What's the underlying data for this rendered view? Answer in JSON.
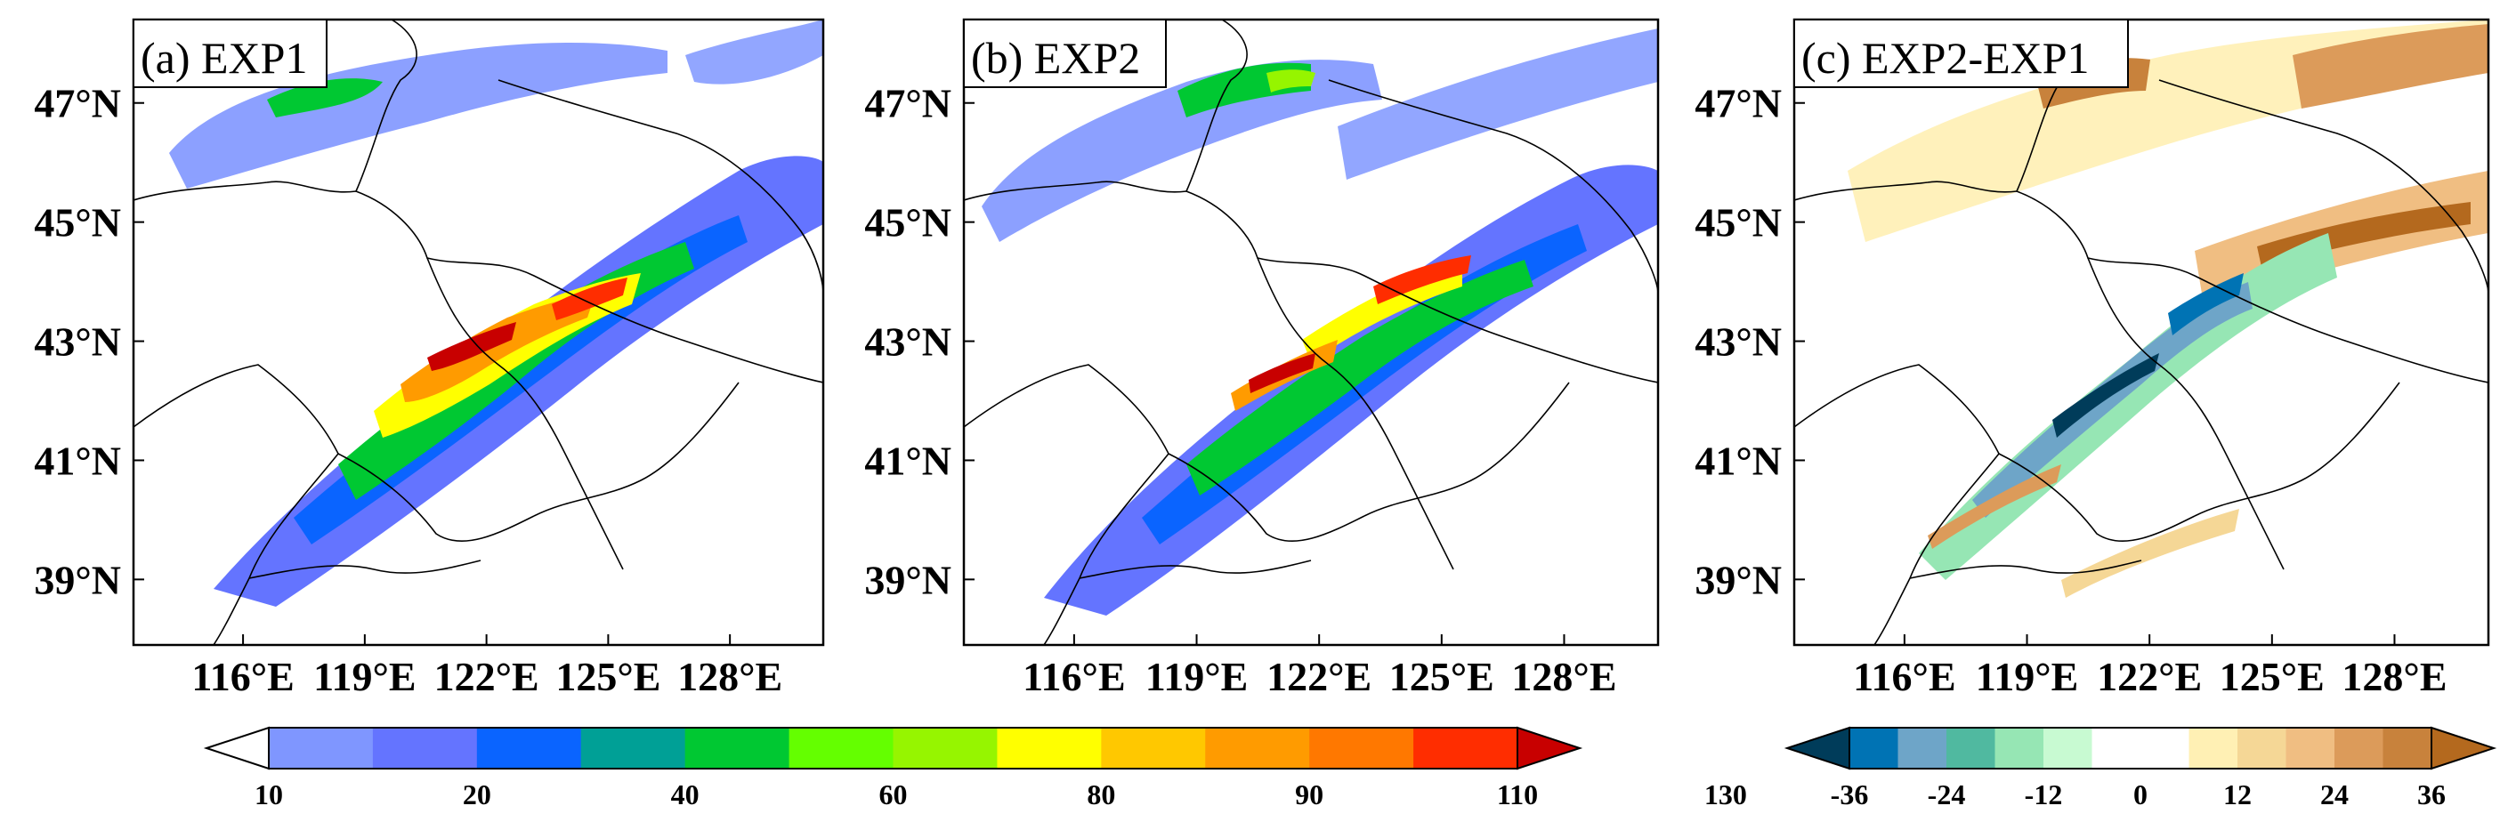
{
  "figure": {
    "panels": [
      {
        "id": "a",
        "title": "(a) EXP1"
      },
      {
        "id": "b",
        "title": "(b) EXP2"
      },
      {
        "id": "c",
        "title": "(c) EXP2-EXP1"
      }
    ],
    "lon_ticks": [
      "116°E",
      "119°E",
      "122°E",
      "125°E",
      "128°E"
    ],
    "lat_ticks": [
      "47°N",
      "45°N",
      "43°N",
      "41°N",
      "39°N"
    ],
    "lon_values": [
      116,
      119,
      122,
      125,
      128
    ],
    "lat_values": [
      47,
      45,
      43,
      41,
      39
    ],
    "lon_range": [
      113.3,
      130.3
    ],
    "lat_range": [
      37.9,
      48.4
    ]
  },
  "colorbar_precip": {
    "labels": [
      "10",
      "20",
      "40",
      "60",
      "80",
      "90",
      "110",
      "130"
    ],
    "label_bins": [
      1,
      3,
      5,
      7,
      9,
      11,
      13,
      15
    ],
    "colors": [
      "#ffffff",
      "#7f96ff",
      "#6474ff",
      "#0a64ff",
      "#00a096",
      "#00c832",
      "#64ff00",
      "#96f500",
      "#ffff00",
      "#ffc800",
      "#ff9b00",
      "#ff7800",
      "#ff2d00",
      "#c80000"
    ]
  },
  "colorbar_diff": {
    "labels": [
      "-36",
      "-24",
      "-12",
      "0",
      "12",
      "24",
      "36"
    ],
    "label_bins": [
      1,
      3,
      5,
      7,
      9,
      11,
      13
    ],
    "colors": [
      "#003c5a",
      "#0073b4",
      "#6ea5c8",
      "#50b9a0",
      "#96e6b4",
      "#c8fad2",
      "#ffffff",
      "#ffffff",
      "#fff0b4",
      "#f5d796",
      "#f0be82",
      "#dc9b5a",
      "#c8823c",
      "#b4691e"
    ]
  }
}
